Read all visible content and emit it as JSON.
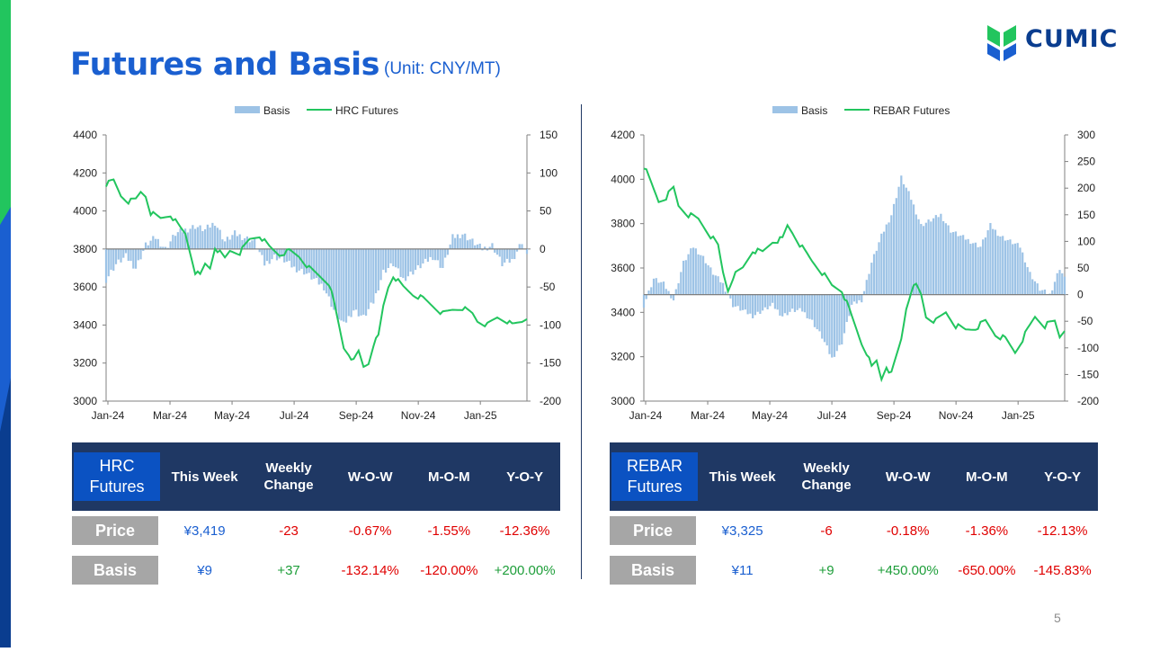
{
  "slide": {
    "title": "Futures and Basis",
    "unit": "(Unit: CNY/MT)",
    "page_number": "5",
    "logo_text": "CUMIC"
  },
  "colors": {
    "title": "#1a5fd0",
    "basis_bar": "#9dc3e6",
    "futures_line": "#22c55e",
    "table_header": "#1f3864",
    "table_label": "#0b52c2",
    "row_label": "#a6a6a6",
    "negative": "#e00000",
    "positive": "#1e9e3a"
  },
  "chart_data": [
    {
      "type": "bar+line",
      "legend": [
        "Basis",
        "HRC Futures"
      ],
      "x_ticks": [
        "Jan-24",
        "Mar-24",
        "May-24",
        "Jul-24",
        "Sep-24",
        "Nov-24",
        "Jan-25"
      ],
      "y_left": {
        "min": 3000,
        "max": 4400,
        "ticks": [
          3000,
          3200,
          3400,
          3600,
          3800,
          4000,
          4200,
          4400
        ]
      },
      "y_right": {
        "min": -200,
        "max": 150,
        "ticks": [
          -200,
          -150,
          -100,
          -50,
          0,
          50,
          100,
          150
        ]
      },
      "series": [
        {
          "name": "Basis",
          "axis": "right",
          "kind": "bar",
          "keypoints": [
            [
              0,
              -40
            ],
            [
              4,
              -20
            ],
            [
              8,
              -10
            ],
            [
              12,
              -25
            ],
            [
              16,
              5
            ],
            [
              20,
              15
            ],
            [
              24,
              0
            ],
            [
              28,
              20
            ],
            [
              32,
              25
            ],
            [
              36,
              30
            ],
            [
              40,
              25
            ],
            [
              44,
              35
            ],
            [
              48,
              10
            ],
            [
              52,
              20
            ],
            [
              56,
              15
            ],
            [
              60,
              10
            ],
            [
              64,
              -20
            ],
            [
              68,
              -10
            ],
            [
              72,
              -15
            ],
            [
              76,
              -25
            ],
            [
              80,
              -30
            ],
            [
              84,
              -40
            ],
            [
              88,
              -50
            ],
            [
              92,
              -80
            ],
            [
              96,
              -100
            ],
            [
              100,
              -80
            ],
            [
              104,
              -90
            ],
            [
              108,
              -70
            ],
            [
              112,
              -30
            ],
            [
              116,
              -20
            ],
            [
              120,
              -40
            ],
            [
              124,
              -30
            ],
            [
              128,
              -20
            ],
            [
              132,
              -10
            ],
            [
              136,
              -25
            ],
            [
              140,
              15
            ],
            [
              144,
              20
            ],
            [
              148,
              10
            ],
            [
              152,
              0
            ],
            [
              156,
              5
            ],
            [
              160,
              -20
            ],
            [
              164,
              -15
            ],
            [
              168,
              10
            ],
            [
              170,
              -10
            ]
          ]
        },
        {
          "name": "HRC Futures",
          "axis": "left",
          "kind": "line",
          "keypoints": [
            [
              0,
              4140
            ],
            [
              3,
              4160
            ],
            [
              6,
              4080
            ],
            [
              9,
              4050
            ],
            [
              12,
              4060
            ],
            [
              14,
              4100
            ],
            [
              16,
              4080
            ],
            [
              18,
              3990
            ],
            [
              22,
              3960
            ],
            [
              26,
              3980
            ],
            [
              30,
              3910
            ],
            [
              32,
              3880
            ],
            [
              34,
              3780
            ],
            [
              36,
              3680
            ],
            [
              38,
              3660
            ],
            [
              40,
              3720
            ],
            [
              42,
              3700
            ],
            [
              44,
              3810
            ],
            [
              48,
              3750
            ],
            [
              50,
              3790
            ],
            [
              54,
              3780
            ],
            [
              58,
              3850
            ],
            [
              62,
              3870
            ],
            [
              66,
              3810
            ],
            [
              70,
              3770
            ],
            [
              74,
              3790
            ],
            [
              78,
              3760
            ],
            [
              82,
              3700
            ],
            [
              86,
              3660
            ],
            [
              90,
              3620
            ],
            [
              92,
              3520
            ],
            [
              94,
              3400
            ],
            [
              96,
              3280
            ],
            [
              98,
              3250
            ],
            [
              100,
              3210
            ],
            [
              102,
              3260
            ],
            [
              104,
              3180
            ],
            [
              106,
              3200
            ],
            [
              108,
              3300
            ],
            [
              110,
              3340
            ],
            [
              112,
              3500
            ],
            [
              114,
              3600
            ],
            [
              116,
              3660
            ],
            [
              120,
              3600
            ],
            [
              124,
              3560
            ],
            [
              128,
              3540
            ],
            [
              132,
              3500
            ],
            [
              136,
              3460
            ],
            [
              140,
              3480
            ],
            [
              144,
              3490
            ],
            [
              148,
              3460
            ],
            [
              150,
              3420
            ],
            [
              154,
              3400
            ],
            [
              158,
              3440
            ],
            [
              162,
              3420
            ],
            [
              164,
              3400
            ],
            [
              168,
              3419
            ],
            [
              170,
              3440
            ]
          ]
        }
      ]
    },
    {
      "type": "bar+line",
      "legend": [
        "Basis",
        "REBAR Futures"
      ],
      "x_ticks": [
        "Jan-24",
        "Mar-24",
        "May-24",
        "Jul-24",
        "Sep-24",
        "Nov-24",
        "Jan-25"
      ],
      "y_left": {
        "min": 3000,
        "max": 4200,
        "ticks": [
          3000,
          3200,
          3400,
          3600,
          3800,
          4000,
          4200
        ]
      },
      "y_right": {
        "min": -200,
        "max": 300,
        "ticks": [
          -200,
          -150,
          -100,
          -50,
          0,
          50,
          100,
          150,
          200,
          250,
          300
        ]
      },
      "series": [
        {
          "name": "Basis",
          "axis": "right",
          "kind": "bar",
          "keypoints": [
            [
              0,
              -20
            ],
            [
              4,
              30
            ],
            [
              8,
              20
            ],
            [
              12,
              -10
            ],
            [
              16,
              60
            ],
            [
              20,
              90
            ],
            [
              24,
              70
            ],
            [
              28,
              40
            ],
            [
              32,
              20
            ],
            [
              36,
              -20
            ],
            [
              40,
              -30
            ],
            [
              44,
              -40
            ],
            [
              48,
              -30
            ],
            [
              52,
              -20
            ],
            [
              56,
              -40
            ],
            [
              60,
              -30
            ],
            [
              64,
              -30
            ],
            [
              68,
              -50
            ],
            [
              72,
              -80
            ],
            [
              76,
              -120
            ],
            [
              80,
              -90
            ],
            [
              84,
              -20
            ],
            [
              88,
              -10
            ],
            [
              92,
              60
            ],
            [
              96,
              110
            ],
            [
              100,
              150
            ],
            [
              104,
              220
            ],
            [
              108,
              180
            ],
            [
              112,
              130
            ],
            [
              116,
              140
            ],
            [
              120,
              150
            ],
            [
              124,
              120
            ],
            [
              128,
              110
            ],
            [
              132,
              100
            ],
            [
              136,
              90
            ],
            [
              140,
              130
            ],
            [
              144,
              110
            ],
            [
              148,
              100
            ],
            [
              152,
              90
            ],
            [
              156,
              40
            ],
            [
              160,
              10
            ],
            [
              164,
              0
            ],
            [
              168,
              50
            ],
            [
              170,
              30
            ]
          ]
        },
        {
          "name": "REBAR Futures",
          "axis": "left",
          "kind": "line",
          "keypoints": [
            [
              0,
              4060
            ],
            [
              3,
              3980
            ],
            [
              6,
              3900
            ],
            [
              9,
              3920
            ],
            [
              12,
              3960
            ],
            [
              14,
              3880
            ],
            [
              18,
              3840
            ],
            [
              22,
              3820
            ],
            [
              26,
              3760
            ],
            [
              30,
              3700
            ],
            [
              32,
              3580
            ],
            [
              34,
              3500
            ],
            [
              36,
              3560
            ],
            [
              40,
              3600
            ],
            [
              44,
              3680
            ],
            [
              48,
              3670
            ],
            [
              52,
              3720
            ],
            [
              56,
              3730
            ],
            [
              58,
              3790
            ],
            [
              60,
              3760
            ],
            [
              64,
              3690
            ],
            [
              68,
              3630
            ],
            [
              72,
              3580
            ],
            [
              76,
              3520
            ],
            [
              80,
              3500
            ],
            [
              84,
              3380
            ],
            [
              88,
              3260
            ],
            [
              90,
              3220
            ],
            [
              92,
              3150
            ],
            [
              94,
              3180
            ],
            [
              96,
              3100
            ],
            [
              98,
              3160
            ],
            [
              100,
              3120
            ],
            [
              104,
              3280
            ],
            [
              106,
              3420
            ],
            [
              108,
              3500
            ],
            [
              110,
              3520
            ],
            [
              112,
              3480
            ],
            [
              114,
              3380
            ],
            [
              118,
              3360
            ],
            [
              122,
              3400
            ],
            [
              126,
              3340
            ],
            [
              130,
              3320
            ],
            [
              134,
              3330
            ],
            [
              138,
              3360
            ],
            [
              142,
              3300
            ],
            [
              146,
              3280
            ],
            [
              150,
              3220
            ],
            [
              154,
              3300
            ],
            [
              158,
              3380
            ],
            [
              162,
              3340
            ],
            [
              166,
              3360
            ],
            [
              168,
              3290
            ],
            [
              170,
              3325
            ]
          ]
        }
      ]
    }
  ],
  "tables": [
    {
      "label": "HRC Futures",
      "headers": [
        "This Week",
        "Weekly Change",
        "W-O-W",
        "M-O-M",
        "Y-O-Y"
      ],
      "rows": [
        {
          "label": "Price",
          "cells": [
            "¥3,419",
            "-23",
            "-0.67%",
            "-1.55%",
            "-12.36%"
          ]
        },
        {
          "label": "Basis",
          "cells": [
            "¥9",
            "+37",
            "-132.14%",
            "-120.00%",
            "+200.00%"
          ]
        }
      ]
    },
    {
      "label": "REBAR Futures",
      "headers": [
        "This Week",
        "Weekly Change",
        "W-O-W",
        "M-O-M",
        "Y-O-Y"
      ],
      "rows": [
        {
          "label": "Price",
          "cells": [
            "¥3,325",
            "-6",
            "-0.18%",
            "-1.36%",
            "-12.13%"
          ]
        },
        {
          "label": "Basis",
          "cells": [
            "¥11",
            "+9",
            "+450.00%",
            "-650.00%",
            "-145.83%"
          ]
        }
      ]
    }
  ]
}
